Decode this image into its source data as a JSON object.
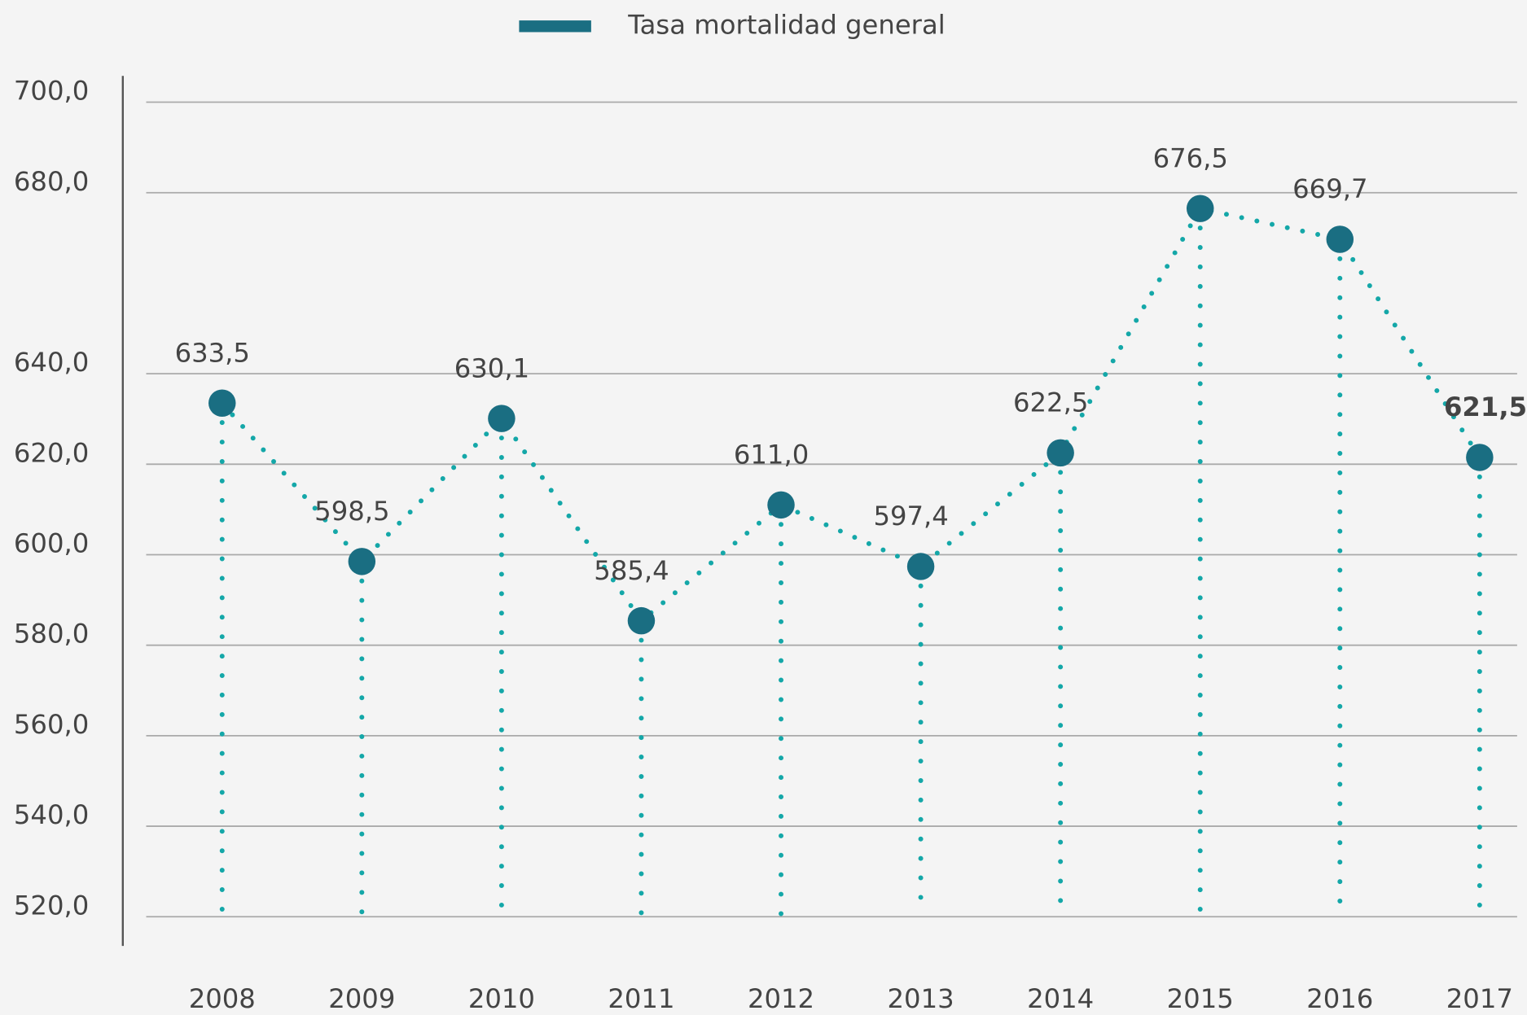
{
  "chart_data": {
    "type": "line",
    "categories": [
      "2008",
      "2009",
      "2010",
      "2011",
      "2012",
      "2013",
      "2014",
      "2015",
      "2016",
      "2017"
    ],
    "series": [
      {
        "name": "Tasa mortalidad general",
        "color": "#1a6e82",
        "line_color": "#14a7a8",
        "values": [
          633.5,
          598.5,
          630.1,
          585.4,
          611.0,
          597.4,
          622.5,
          676.5,
          669.7,
          621.5
        ],
        "value_labels": [
          "633,5",
          "598,5",
          "630,1",
          "585,4",
          "611,0",
          "597,4",
          "622,5",
          "676,5",
          "669,7",
          "621,5"
        ]
      }
    ],
    "ylim": [
      520,
      700
    ],
    "yticks": [
      {
        "value": 700,
        "label": "700,0"
      },
      {
        "value": 680,
        "label": "680,0"
      },
      {
        "value": 640,
        "label": "640,0"
      },
      {
        "value": 620,
        "label": "620,0"
      },
      {
        "value": 600,
        "label": "600,0"
      },
      {
        "value": 580,
        "label": "580,0"
      },
      {
        "value": 560,
        "label": "560,0"
      },
      {
        "value": 540,
        "label": "540,0"
      },
      {
        "value": 520,
        "label": "520,0"
      }
    ],
    "grid": true,
    "legend": "top"
  }
}
